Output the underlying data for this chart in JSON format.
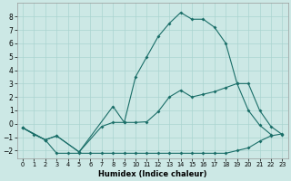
{
  "xlabel": "Humidex (Indice chaleur)",
  "background_color": "#cce8e5",
  "grid_color": "#aad4d0",
  "line_color": "#1a6e68",
  "xlim": [
    -0.5,
    23.5
  ],
  "ylim": [
    -2.6,
    9.0
  ],
  "yticks": [
    -2,
    -1,
    0,
    1,
    2,
    3,
    4,
    5,
    6,
    7,
    8
  ],
  "xticks": [
    0,
    1,
    2,
    3,
    4,
    5,
    6,
    7,
    8,
    9,
    10,
    11,
    12,
    13,
    14,
    15,
    16,
    17,
    18,
    19,
    20,
    21,
    22,
    23
  ],
  "line_top_x": [
    0,
    2,
    3,
    5,
    8,
    9,
    10,
    11,
    12,
    13,
    14,
    15,
    16,
    17,
    18,
    19,
    20,
    21,
    22
  ],
  "line_top_y": [
    -0.3,
    -1.2,
    -0.9,
    -2.1,
    1.3,
    0.1,
    3.5,
    5.0,
    6.5,
    7.5,
    8.3,
    7.8,
    7.8,
    7.2,
    6.0,
    3.0,
    1.0,
    -0.1,
    -0.8
  ],
  "line_mid_x": [
    0,
    2,
    3,
    5,
    7,
    8,
    9,
    10,
    11,
    12,
    13,
    14,
    15,
    16,
    17,
    18,
    19,
    20,
    21,
    22,
    23
  ],
  "line_mid_y": [
    -0.3,
    -1.2,
    -0.9,
    -2.1,
    -0.2,
    0.1,
    0.1,
    0.1,
    0.15,
    0.9,
    2.0,
    2.5,
    2.0,
    2.2,
    2.4,
    2.7,
    3.0,
    3.0,
    1.0,
    -0.2,
    -0.8
  ],
  "line_bot_x": [
    0,
    1,
    2,
    3,
    4,
    5,
    6,
    7,
    8,
    9,
    10,
    11,
    12,
    13,
    14,
    15,
    16,
    17,
    18,
    19,
    20,
    21,
    22,
    23
  ],
  "line_bot_y": [
    -0.3,
    -0.8,
    -1.2,
    -2.2,
    -2.2,
    -2.2,
    -2.2,
    -2.2,
    -2.2,
    -2.2,
    -2.2,
    -2.2,
    -2.2,
    -2.2,
    -2.2,
    -2.2,
    -2.2,
    -2.2,
    -2.2,
    -2.0,
    -1.8,
    -1.3,
    -0.9,
    -0.75
  ]
}
